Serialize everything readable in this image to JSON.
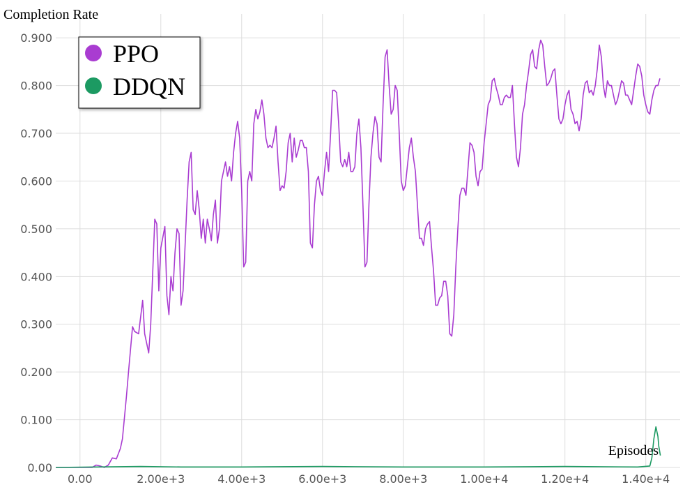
{
  "chart_data": {
    "type": "line",
    "title": "",
    "ylabel": "Completion Rate",
    "xlabel": "Episodes",
    "xlim": [
      -600,
      14850
    ],
    "ylim": [
      0,
      0.95
    ],
    "grid": true,
    "legend_position": "top-left",
    "x_ticks": [
      {
        "value": 0,
        "label": "0.00"
      },
      {
        "value": 2000,
        "label": "2.00e+3"
      },
      {
        "value": 4000,
        "label": "4.00e+3"
      },
      {
        "value": 6000,
        "label": "6.00e+3"
      },
      {
        "value": 8000,
        "label": "8.00e+3"
      },
      {
        "value": 10000,
        "label": "1.00e+4"
      },
      {
        "value": 12000,
        "label": "1.20e+4"
      },
      {
        "value": 14000,
        "label": "1.40e+4"
      }
    ],
    "y_ticks": [
      {
        "value": 0,
        "label": "0.00"
      },
      {
        "value": 0.1,
        "label": "0.100"
      },
      {
        "value": 0.2,
        "label": "0.200"
      },
      {
        "value": 0.3,
        "label": "0.300"
      },
      {
        "value": 0.4,
        "label": "0.400"
      },
      {
        "value": 0.5,
        "label": "0.500"
      },
      {
        "value": 0.6,
        "label": "0.600"
      },
      {
        "value": 0.7,
        "label": "0.700"
      },
      {
        "value": 0.8,
        "label": "0.800"
      },
      {
        "value": 0.9,
        "label": "0.900"
      }
    ],
    "series": [
      {
        "name": "PPO",
        "color": "#a93cd1",
        "points": [
          [
            -600,
            0
          ],
          [
            300,
            0
          ],
          [
            400,
            0.005
          ],
          [
            500,
            0.003
          ],
          [
            600,
            0
          ],
          [
            700,
            0.005
          ],
          [
            800,
            0.02
          ],
          [
            900,
            0.018
          ],
          [
            1000,
            0.04
          ],
          [
            1050,
            0.06
          ],
          [
            1150,
            0.15
          ],
          [
            1200,
            0.2
          ],
          [
            1300,
            0.295
          ],
          [
            1350,
            0.285
          ],
          [
            1450,
            0.28
          ],
          [
            1550,
            0.35
          ],
          [
            1600,
            0.28
          ],
          [
            1700,
            0.24
          ],
          [
            1750,
            0.3
          ],
          [
            1850,
            0.52
          ],
          [
            1900,
            0.51
          ],
          [
            1950,
            0.37
          ],
          [
            2000,
            0.46
          ],
          [
            2100,
            0.505
          ],
          [
            2150,
            0.36
          ],
          [
            2200,
            0.32
          ],
          [
            2250,
            0.4
          ],
          [
            2300,
            0.37
          ],
          [
            2350,
            0.45
          ],
          [
            2400,
            0.5
          ],
          [
            2450,
            0.49
          ],
          [
            2500,
            0.34
          ],
          [
            2550,
            0.37
          ],
          [
            2650,
            0.56
          ],
          [
            2700,
            0.64
          ],
          [
            2750,
            0.66
          ],
          [
            2800,
            0.54
          ],
          [
            2850,
            0.53
          ],
          [
            2900,
            0.58
          ],
          [
            2950,
            0.54
          ],
          [
            3000,
            0.48
          ],
          [
            3050,
            0.52
          ],
          [
            3100,
            0.47
          ],
          [
            3150,
            0.52
          ],
          [
            3200,
            0.5
          ],
          [
            3250,
            0.475
          ],
          [
            3300,
            0.53
          ],
          [
            3350,
            0.56
          ],
          [
            3400,
            0.47
          ],
          [
            3450,
            0.5
          ],
          [
            3500,
            0.6
          ],
          [
            3550,
            0.62
          ],
          [
            3600,
            0.64
          ],
          [
            3650,
            0.61
          ],
          [
            3700,
            0.63
          ],
          [
            3750,
            0.6
          ],
          [
            3800,
            0.66
          ],
          [
            3850,
            0.7
          ],
          [
            3900,
            0.725
          ],
          [
            3950,
            0.69
          ],
          [
            4000,
            0.58
          ],
          [
            4050,
            0.42
          ],
          [
            4100,
            0.43
          ],
          [
            4150,
            0.6
          ],
          [
            4200,
            0.62
          ],
          [
            4250,
            0.6
          ],
          [
            4300,
            0.72
          ],
          [
            4350,
            0.75
          ],
          [
            4400,
            0.73
          ],
          [
            4450,
            0.745
          ],
          [
            4500,
            0.77
          ],
          [
            4550,
            0.74
          ],
          [
            4600,
            0.69
          ],
          [
            4650,
            0.67
          ],
          [
            4700,
            0.675
          ],
          [
            4750,
            0.67
          ],
          [
            4800,
            0.69
          ],
          [
            4850,
            0.715
          ],
          [
            4900,
            0.64
          ],
          [
            4950,
            0.58
          ],
          [
            5000,
            0.59
          ],
          [
            5050,
            0.585
          ],
          [
            5100,
            0.62
          ],
          [
            5150,
            0.68
          ],
          [
            5200,
            0.7
          ],
          [
            5250,
            0.64
          ],
          [
            5300,
            0.69
          ],
          [
            5350,
            0.65
          ],
          [
            5400,
            0.665
          ],
          [
            5450,
            0.685
          ],
          [
            5500,
            0.685
          ],
          [
            5550,
            0.67
          ],
          [
            5600,
            0.67
          ],
          [
            5650,
            0.62
          ],
          [
            5700,
            0.47
          ],
          [
            5750,
            0.46
          ],
          [
            5800,
            0.55
          ],
          [
            5850,
            0.6
          ],
          [
            5900,
            0.61
          ],
          [
            5950,
            0.58
          ],
          [
            6000,
            0.57
          ],
          [
            6050,
            0.62
          ],
          [
            6100,
            0.66
          ],
          [
            6150,
            0.62
          ],
          [
            6200,
            0.7
          ],
          [
            6250,
            0.79
          ],
          [
            6300,
            0.79
          ],
          [
            6350,
            0.785
          ],
          [
            6400,
            0.72
          ],
          [
            6450,
            0.64
          ],
          [
            6500,
            0.63
          ],
          [
            6550,
            0.645
          ],
          [
            6600,
            0.63
          ],
          [
            6650,
            0.66
          ],
          [
            6700,
            0.62
          ],
          [
            6750,
            0.62
          ],
          [
            6800,
            0.63
          ],
          [
            6850,
            0.7
          ],
          [
            6900,
            0.73
          ],
          [
            6950,
            0.67
          ],
          [
            7000,
            0.55
          ],
          [
            7050,
            0.42
          ],
          [
            7100,
            0.43
          ],
          [
            7150,
            0.55
          ],
          [
            7200,
            0.65
          ],
          [
            7250,
            0.7
          ],
          [
            7300,
            0.735
          ],
          [
            7350,
            0.72
          ],
          [
            7400,
            0.65
          ],
          [
            7450,
            0.64
          ],
          [
            7500,
            0.76
          ],
          [
            7550,
            0.86
          ],
          [
            7600,
            0.875
          ],
          [
            7650,
            0.8
          ],
          [
            7700,
            0.74
          ],
          [
            7750,
            0.75
          ],
          [
            7800,
            0.8
          ],
          [
            7850,
            0.79
          ],
          [
            7900,
            0.7
          ],
          [
            7950,
            0.6
          ],
          [
            8000,
            0.58
          ],
          [
            8050,
            0.59
          ],
          [
            8100,
            0.63
          ],
          [
            8150,
            0.67
          ],
          [
            8200,
            0.69
          ],
          [
            8250,
            0.65
          ],
          [
            8300,
            0.62
          ],
          [
            8350,
            0.55
          ],
          [
            8400,
            0.48
          ],
          [
            8450,
            0.48
          ],
          [
            8500,
            0.465
          ],
          [
            8550,
            0.5
          ],
          [
            8600,
            0.51
          ],
          [
            8650,
            0.515
          ],
          [
            8700,
            0.46
          ],
          [
            8750,
            0.41
          ],
          [
            8800,
            0.34
          ],
          [
            8850,
            0.34
          ],
          [
            8900,
            0.355
          ],
          [
            8950,
            0.36
          ],
          [
            9000,
            0.39
          ],
          [
            9050,
            0.39
          ],
          [
            9100,
            0.36
          ],
          [
            9150,
            0.28
          ],
          [
            9200,
            0.275
          ],
          [
            9250,
            0.32
          ],
          [
            9300,
            0.42
          ],
          [
            9350,
            0.5
          ],
          [
            9400,
            0.57
          ],
          [
            9450,
            0.585
          ],
          [
            9500,
            0.585
          ],
          [
            9550,
            0.57
          ],
          [
            9600,
            0.625
          ],
          [
            9650,
            0.68
          ],
          [
            9700,
            0.675
          ],
          [
            9750,
            0.66
          ],
          [
            9800,
            0.61
          ],
          [
            9850,
            0.59
          ],
          [
            9900,
            0.62
          ],
          [
            9950,
            0.625
          ],
          [
            10000,
            0.68
          ],
          [
            10050,
            0.72
          ],
          [
            10100,
            0.76
          ],
          [
            10150,
            0.77
          ],
          [
            10200,
            0.81
          ],
          [
            10250,
            0.815
          ],
          [
            10300,
            0.795
          ],
          [
            10350,
            0.78
          ],
          [
            10400,
            0.76
          ],
          [
            10450,
            0.76
          ],
          [
            10500,
            0.775
          ],
          [
            10550,
            0.78
          ],
          [
            10600,
            0.775
          ],
          [
            10650,
            0.775
          ],
          [
            10700,
            0.8
          ],
          [
            10750,
            0.72
          ],
          [
            10800,
            0.65
          ],
          [
            10850,
            0.63
          ],
          [
            10900,
            0.67
          ],
          [
            10950,
            0.74
          ],
          [
            11000,
            0.76
          ],
          [
            11050,
            0.8
          ],
          [
            11100,
            0.83
          ],
          [
            11150,
            0.865
          ],
          [
            11200,
            0.875
          ],
          [
            11250,
            0.84
          ],
          [
            11300,
            0.835
          ],
          [
            11350,
            0.875
          ],
          [
            11400,
            0.895
          ],
          [
            11450,
            0.885
          ],
          [
            11500,
            0.84
          ],
          [
            11550,
            0.8
          ],
          [
            11600,
            0.805
          ],
          [
            11650,
            0.815
          ],
          [
            11700,
            0.83
          ],
          [
            11750,
            0.835
          ],
          [
            11800,
            0.78
          ],
          [
            11850,
            0.73
          ],
          [
            11900,
            0.72
          ],
          [
            11950,
            0.73
          ],
          [
            12000,
            0.76
          ],
          [
            12050,
            0.78
          ],
          [
            12100,
            0.79
          ],
          [
            12150,
            0.75
          ],
          [
            12200,
            0.74
          ],
          [
            12250,
            0.72
          ],
          [
            12300,
            0.725
          ],
          [
            12350,
            0.705
          ],
          [
            12400,
            0.73
          ],
          [
            12450,
            0.78
          ],
          [
            12500,
            0.805
          ],
          [
            12550,
            0.81
          ],
          [
            12600,
            0.785
          ],
          [
            12650,
            0.79
          ],
          [
            12700,
            0.78
          ],
          [
            12750,
            0.8
          ],
          [
            12800,
            0.835
          ],
          [
            12850,
            0.885
          ],
          [
            12900,
            0.86
          ],
          [
            12950,
            0.8
          ],
          [
            13000,
            0.775
          ],
          [
            13050,
            0.81
          ],
          [
            13100,
            0.8
          ],
          [
            13150,
            0.8
          ],
          [
            13200,
            0.78
          ],
          [
            13250,
            0.76
          ],
          [
            13300,
            0.77
          ],
          [
            13350,
            0.79
          ],
          [
            13400,
            0.81
          ],
          [
            13450,
            0.805
          ],
          [
            13500,
            0.78
          ],
          [
            13550,
            0.78
          ],
          [
            13600,
            0.77
          ],
          [
            13650,
            0.76
          ],
          [
            13700,
            0.79
          ],
          [
            13750,
            0.82
          ],
          [
            13800,
            0.845
          ],
          [
            13850,
            0.84
          ],
          [
            13900,
            0.82
          ],
          [
            13950,
            0.78
          ],
          [
            14000,
            0.76
          ],
          [
            14050,
            0.745
          ],
          [
            14100,
            0.74
          ],
          [
            14150,
            0.77
          ],
          [
            14200,
            0.79
          ],
          [
            14250,
            0.8
          ],
          [
            14300,
            0.8
          ],
          [
            14350,
            0.815
          ]
        ]
      },
      {
        "name": "DDQN",
        "color": "#1c9a62",
        "points": [
          [
            -600,
            0
          ],
          [
            1500,
            0.002
          ],
          [
            2500,
            0.001
          ],
          [
            4000,
            0.001
          ],
          [
            6000,
            0.002
          ],
          [
            8000,
            0.001
          ],
          [
            10000,
            0.001
          ],
          [
            12000,
            0.002
          ],
          [
            13800,
            0.001
          ],
          [
            14100,
            0.003
          ],
          [
            14150,
            0.02
          ],
          [
            14200,
            0.06
          ],
          [
            14250,
            0.085
          ],
          [
            14300,
            0.065
          ],
          [
            14320,
            0.045
          ],
          [
            14360,
            0.025
          ]
        ]
      }
    ]
  }
}
